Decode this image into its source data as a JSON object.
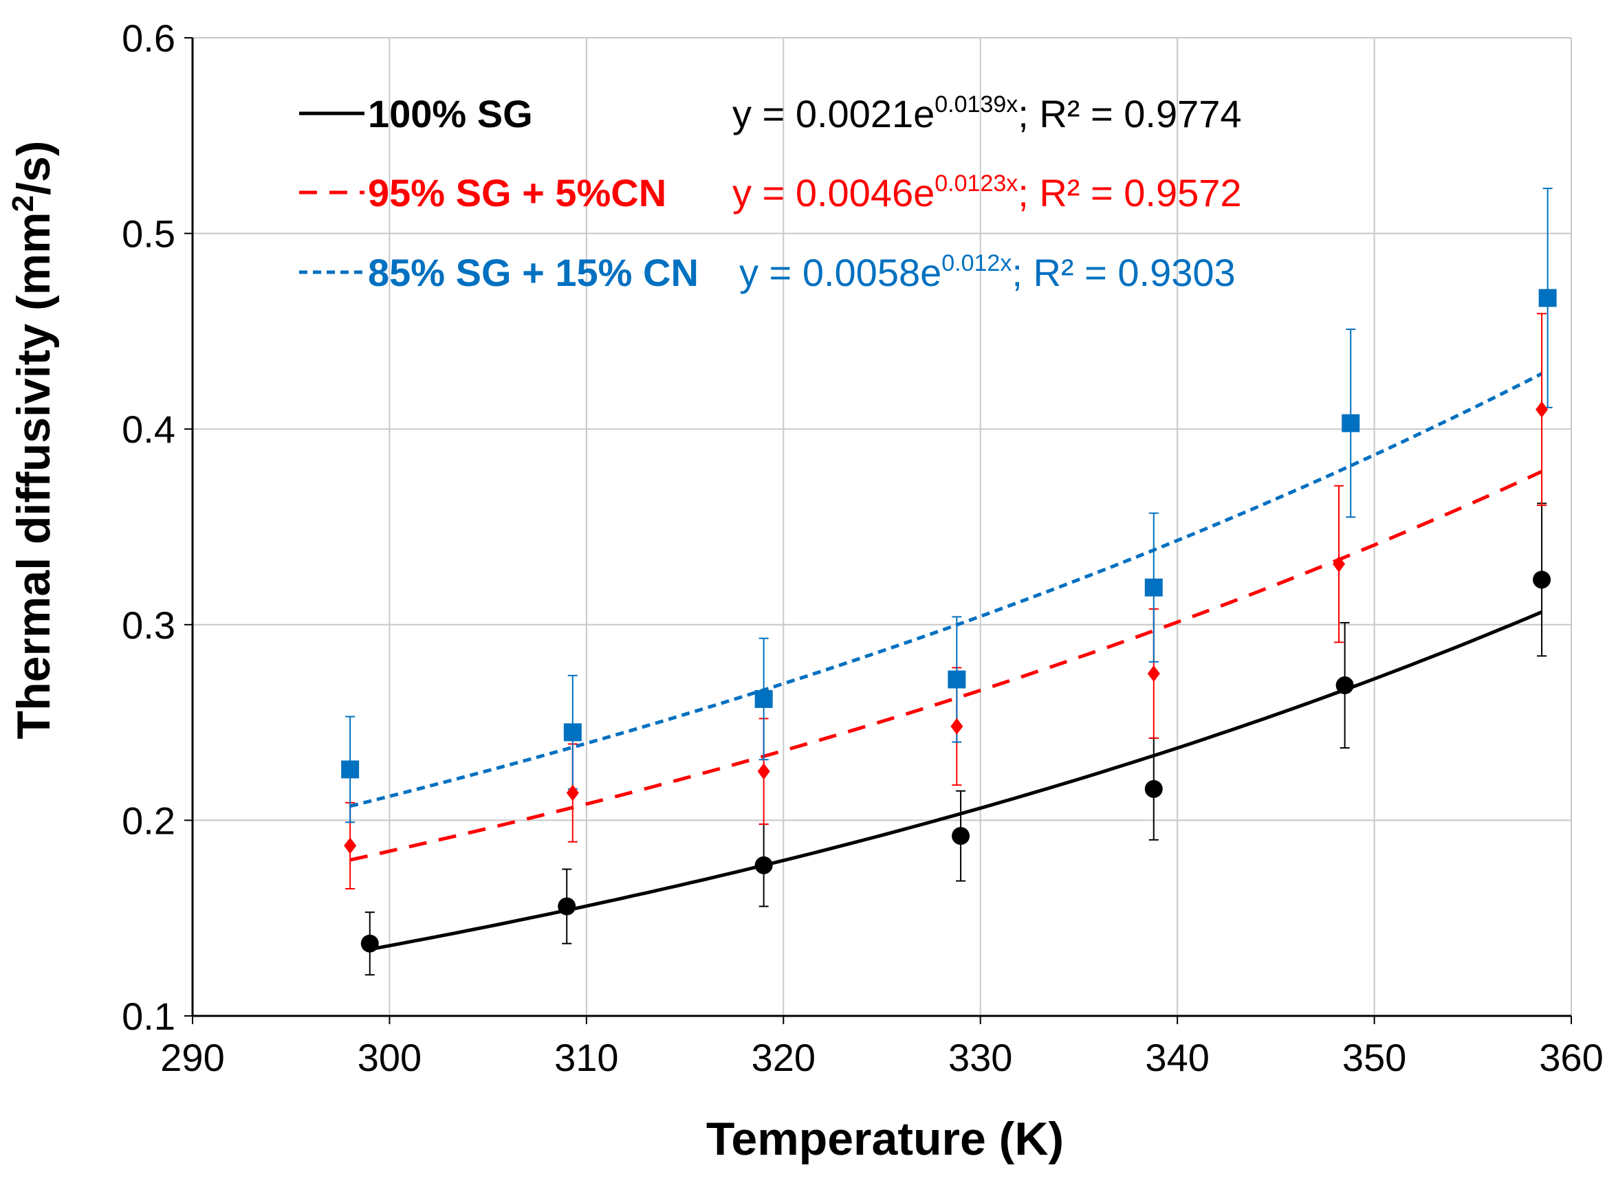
{
  "chart_data": {
    "type": "scatter",
    "xlabel": "Temperature (K)",
    "ylabel_main": "Thermal diffusivity (mm",
    "ylabel_sup": "2",
    "ylabel_end": "/s)",
    "xlim": [
      290,
      360
    ],
    "ylim": [
      0.1,
      0.6
    ],
    "grid": true,
    "legend_position": "top-left",
    "x_ticks": [
      {
        "value": 290,
        "label": "290"
      },
      {
        "value": 300,
        "label": "300"
      },
      {
        "value": 310,
        "label": "310"
      },
      {
        "value": 320,
        "label": "320"
      },
      {
        "value": 330,
        "label": "330"
      },
      {
        "value": 340,
        "label": "340"
      },
      {
        "value": 350,
        "label": "350"
      },
      {
        "value": 360,
        "label": "360"
      }
    ],
    "y_ticks": [
      {
        "value": 0.1,
        "label": "0.1"
      },
      {
        "value": 0.2,
        "label": "0.2"
      },
      {
        "value": 0.3,
        "label": "0.3"
      },
      {
        "value": 0.4,
        "label": "0.4"
      },
      {
        "value": 0.5,
        "label": "0.5"
      },
      {
        "value": 0.6,
        "label": "0.6"
      }
    ],
    "series": [
      {
        "name": "100% SG",
        "color": "#000000",
        "marker": "circle",
        "line_style": "solid",
        "fit": {
          "a": 0.0021,
          "b": 0.0139,
          "x_range": [
            299,
            358.5
          ]
        },
        "equation": {
          "pre": "y = 0.0021e",
          "exp": "0.0139x",
          "post": "; R² = 0.9774"
        },
        "points": [
          {
            "x": 299,
            "y": 0.137,
            "err": 0.016
          },
          {
            "x": 309,
            "y": 0.156,
            "err": 0.019
          },
          {
            "x": 319,
            "y": 0.177,
            "err": 0.021
          },
          {
            "x": 329,
            "y": 0.192,
            "err": 0.023
          },
          {
            "x": 338.8,
            "y": 0.216,
            "err": 0.026
          },
          {
            "x": 348.5,
            "y": 0.269,
            "err": 0.032
          },
          {
            "x": 358.5,
            "y": 0.323,
            "err": 0.039
          }
        ]
      },
      {
        "name": "95% SG + 5%CN",
        "color": "#ff0000",
        "marker": "diamond",
        "line_style": "dashed",
        "fit": {
          "a": 0.0046,
          "b": 0.0123,
          "x_range": [
            298,
            358.5
          ]
        },
        "equation": {
          "pre": "y = 0.0046e",
          "exp": "0.0123x",
          "post": "; R² = 0.9572"
        },
        "points": [
          {
            "x": 298,
            "y": 0.187,
            "err": 0.022
          },
          {
            "x": 309.3,
            "y": 0.214,
            "err": 0.025
          },
          {
            "x": 319,
            "y": 0.225,
            "err": 0.027
          },
          {
            "x": 328.8,
            "y": 0.248,
            "err": 0.03
          },
          {
            "x": 338.8,
            "y": 0.275,
            "err": 0.033
          },
          {
            "x": 348.2,
            "y": 0.331,
            "err": 0.04
          },
          {
            "x": 358.5,
            "y": 0.41,
            "err": 0.049
          }
        ]
      },
      {
        "name": "85% SG + 15% CN",
        "color": "#0070c0",
        "marker": "square",
        "line_style": "dotted",
        "fit": {
          "a": 0.0058,
          "b": 0.012,
          "x_range": [
            298,
            358.5
          ]
        },
        "equation": {
          "pre": "y = 0.0058e",
          "exp": "0.012x",
          "post": "; R² = 0.9303"
        },
        "points": [
          {
            "x": 298,
            "y": 0.226,
            "err": 0.027
          },
          {
            "x": 309.3,
            "y": 0.245,
            "err": 0.029
          },
          {
            "x": 319,
            "y": 0.262,
            "err": 0.031
          },
          {
            "x": 328.8,
            "y": 0.272,
            "err": 0.032
          },
          {
            "x": 338.8,
            "y": 0.319,
            "err": 0.038
          },
          {
            "x": 348.8,
            "y": 0.403,
            "err": 0.048
          },
          {
            "x": 358.8,
            "y": 0.467,
            "err": 0.056
          }
        ]
      }
    ]
  }
}
